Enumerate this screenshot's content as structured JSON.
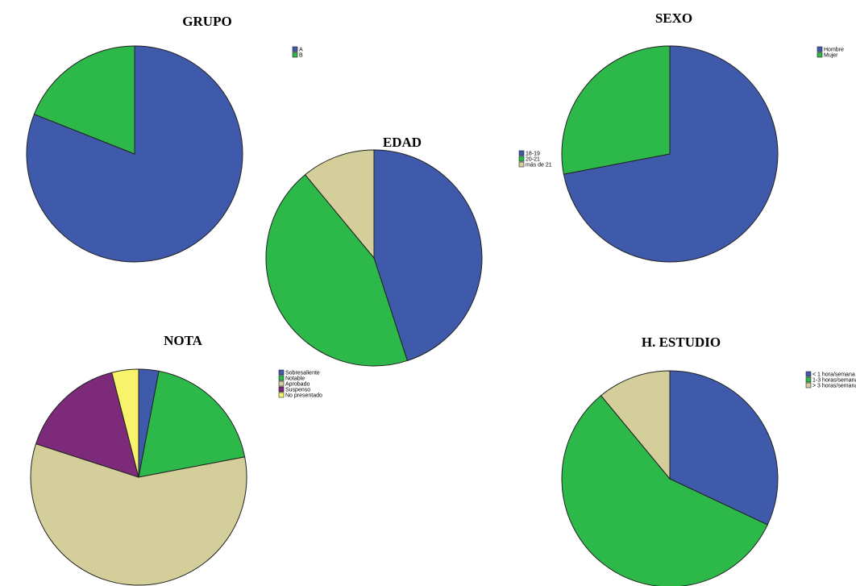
{
  "chart_data": [
    {
      "type": "pie",
      "title": "GRUPO",
      "categories": [
        "A",
        "B"
      ],
      "values": [
        81,
        19
      ],
      "colors": [
        "#3f5aab",
        "#2db84a"
      ],
      "legend_placement": "top-right"
    },
    {
      "type": "pie",
      "title": "EDAD",
      "categories": [
        "18-19",
        "20-21",
        "más de 21"
      ],
      "values": [
        45,
        44,
        11
      ],
      "colors": [
        "#3f5aab",
        "#2db84a",
        "#d4cf9a"
      ],
      "legend_placement": "left"
    },
    {
      "type": "pie",
      "title": "SEXO",
      "categories": [
        "Hombre",
        "Mujer"
      ],
      "values": [
        72,
        28
      ],
      "colors": [
        "#3f5aab",
        "#2db84a"
      ],
      "legend_placement": "top-right"
    },
    {
      "type": "pie",
      "title": "NOTA",
      "categories": [
        "Sobresaliente",
        "Notable",
        "Aprobado",
        "Suspenso",
        "No presentado"
      ],
      "values": [
        3,
        19,
        58,
        16,
        4
      ],
      "colors": [
        "#3f5aab",
        "#2db84a",
        "#d4cf9a",
        "#7d2a7a",
        "#f7f36b"
      ],
      "legend_placement": "top-right"
    },
    {
      "type": "pie",
      "title": "H. ESTUDIO",
      "categories": [
        "< 1 hora/semana",
        "1-3 horas/semana",
        "> 3 horas/semana"
      ],
      "values": [
        32,
        57,
        11
      ],
      "colors": [
        "#3f5aab",
        "#2db84a",
        "#d4cf9a"
      ],
      "legend_placement": "top-right"
    }
  ]
}
